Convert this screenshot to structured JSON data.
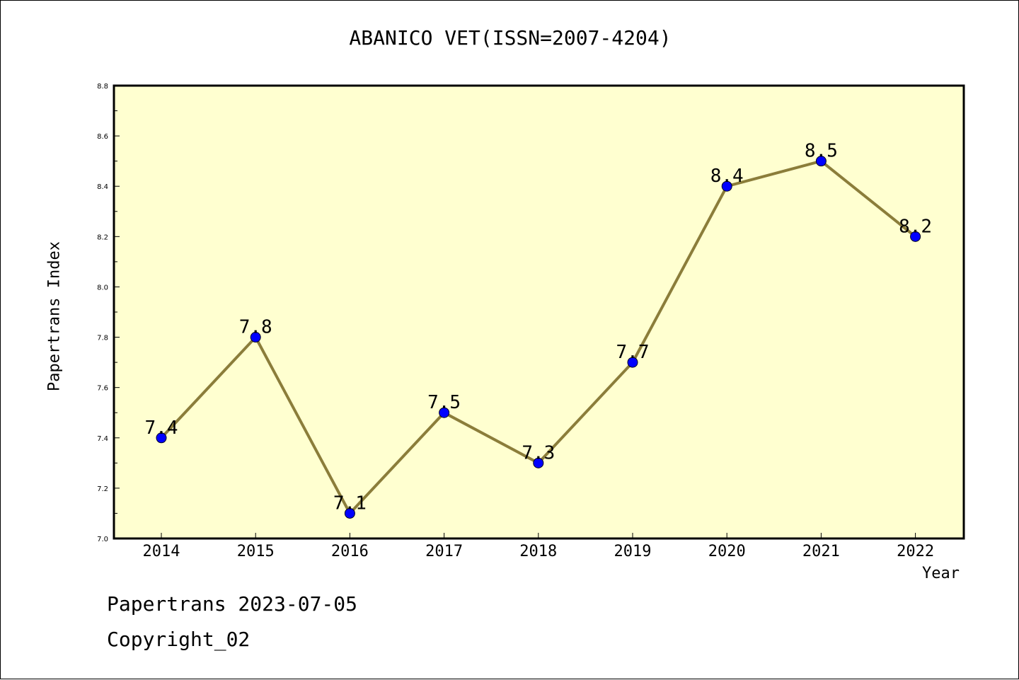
{
  "chart_data": {
    "type": "line",
    "title": "ABANICO VET(ISSN=2007-4204)",
    "xlabel": "Year",
    "ylabel": "Papertrans Index",
    "categories": [
      "2014",
      "2015",
      "2016",
      "2017",
      "2018",
      "2019",
      "2020",
      "2021",
      "2022"
    ],
    "series": [
      {
        "values": [
          7.4,
          7.8,
          7.1,
          7.5,
          7.3,
          7.7,
          8.4,
          8.5,
          8.2
        ],
        "labels": [
          "7.4",
          "7.8",
          "7.1",
          "7.5",
          "7.3",
          "7.7",
          "8.4",
          "8.5",
          "8.2"
        ],
        "line_color": "#8b7d3a",
        "marker_color": "#0000ff"
      }
    ],
    "ylim": [
      7.0,
      8.8
    ],
    "yticks": [
      "7.0",
      "7.2",
      "7.4",
      "7.6",
      "7.8",
      "8.0",
      "8.2",
      "8.4",
      "8.6",
      "8.8"
    ],
    "plot_background": "#ffffd0",
    "grid": false,
    "legend": "none"
  },
  "footer": {
    "date_line": "Papertrans 2023-07-05",
    "copyright": "Copyright_02"
  }
}
